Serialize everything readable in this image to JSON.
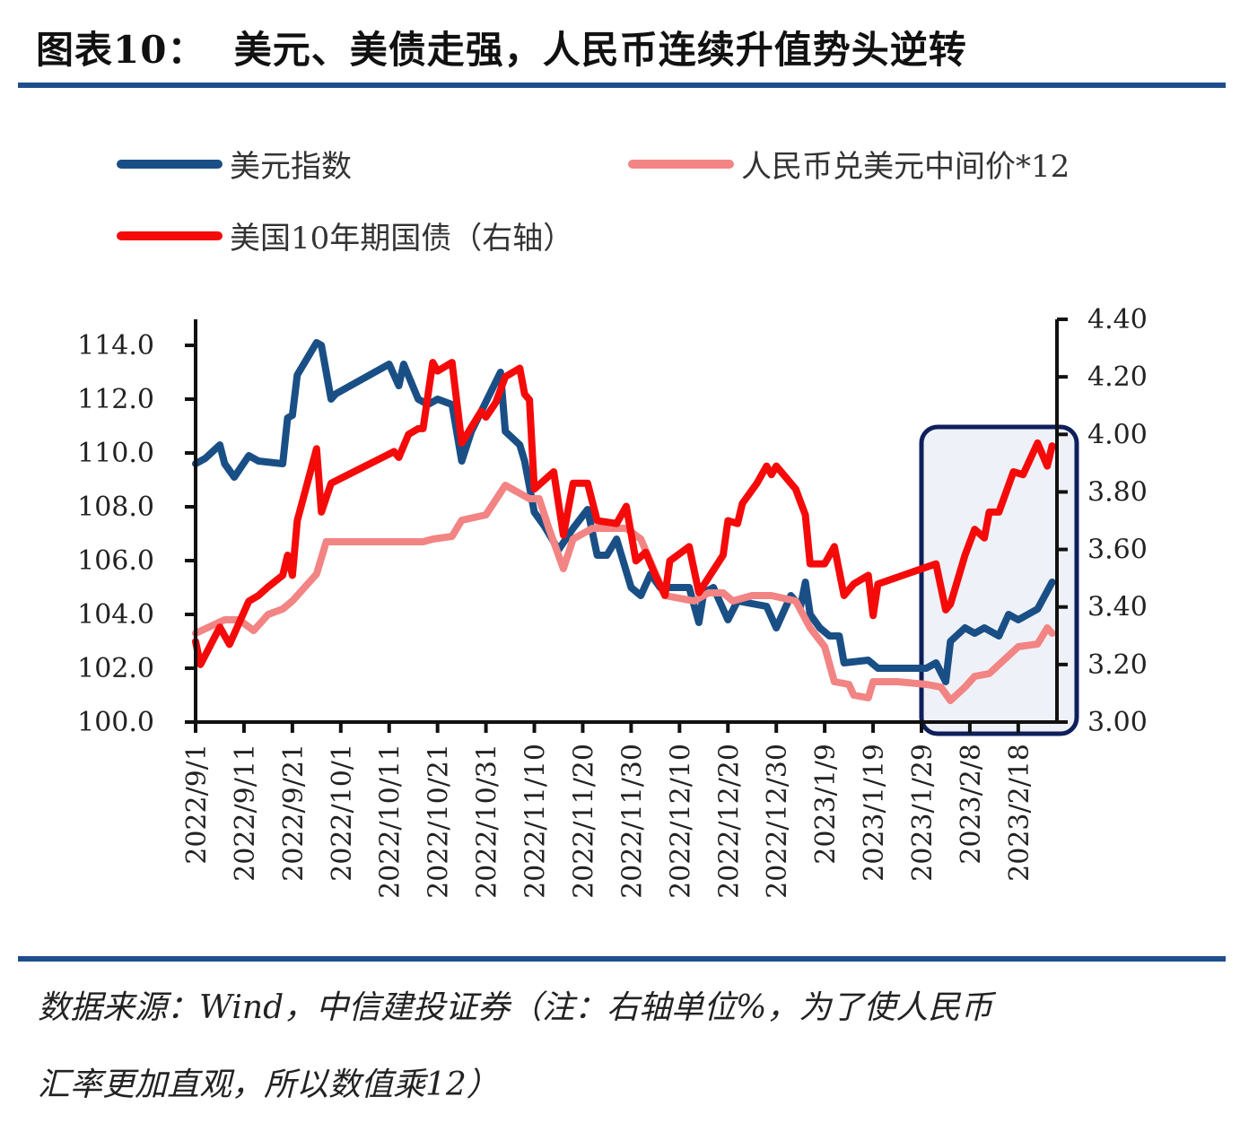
{
  "title": "图表10：  美元、美债走强，人民币连续升值势头逆转",
  "source_lines": [
    "数据来源：Wind，中信建投证券（注：右轴单位%，为了使人民币",
    "汇率更加直观，所以数值乘12）"
  ],
  "colors": {
    "accent_rule": "#1f4e8c",
    "highlight_border": "#0f1f5c",
    "highlight_fill": "#eef1f7"
  },
  "chart_data": {
    "type": "line",
    "title": "",
    "legend_position": "top",
    "grid": false,
    "xlim": [
      "2022/9/1",
      "2023/2/26"
    ],
    "x_ticks": [
      "2022/9/1",
      "2022/9/11",
      "2022/9/21",
      "2022/10/1",
      "2022/10/11",
      "2022/10/21",
      "2022/10/31",
      "2022/11/10",
      "2022/11/20",
      "2022/11/30",
      "2022/12/10",
      "2022/12/20",
      "2022/12/30",
      "2023/1/9",
      "2023/1/19",
      "2023/1/29",
      "2023/2/8",
      "2023/2/18"
    ],
    "y_left": {
      "lim": [
        100,
        115
      ],
      "ticks": [
        "100.0",
        "102.0",
        "104.0",
        "106.0",
        "108.0",
        "110.0",
        "112.0",
        "114.0"
      ]
    },
    "y_right": {
      "lim": [
        3.0,
        4.4
      ],
      "ticks": [
        "3.00",
        "3.20",
        "3.40",
        "3.60",
        "3.80",
        "4.00",
        "4.20",
        "4.40"
      ]
    },
    "highlight": {
      "from": "2023/1/29",
      "to": "2023/2/26"
    },
    "series": [
      {
        "name": "美元指数",
        "axis": "left",
        "color": "#1a4f86",
        "points": [
          [
            "2022/9/1",
            109.6
          ],
          [
            "2022/9/3",
            109.8
          ],
          [
            "2022/9/6",
            110.3
          ],
          [
            "2022/9/7",
            109.6
          ],
          [
            "2022/9/9",
            109.1
          ],
          [
            "2022/9/12",
            109.9
          ],
          [
            "2022/9/14",
            109.7
          ],
          [
            "2022/9/19",
            109.6
          ],
          [
            "2022/9/20",
            111.3
          ],
          [
            "2022/9/21",
            111.4
          ],
          [
            "2022/9/22",
            112.9
          ],
          [
            "2022/9/26",
            114.1
          ],
          [
            "2022/9/27",
            114.0
          ],
          [
            "2022/9/29",
            112.0
          ],
          [
            "2022/9/30",
            112.2
          ],
          [
            "2022/10/11",
            113.3
          ],
          [
            "2022/10/13",
            112.5
          ],
          [
            "2022/10/14",
            113.3
          ],
          [
            "2022/10/17",
            112.0
          ],
          [
            "2022/10/19",
            111.8
          ],
          [
            "2022/10/21",
            112.0
          ],
          [
            "2022/10/24",
            111.8
          ],
          [
            "2022/10/26",
            109.7
          ],
          [
            "2022/10/28",
            110.8
          ],
          [
            "2022/11/3",
            113.0
          ],
          [
            "2022/11/4",
            110.8
          ],
          [
            "2022/11/7",
            110.3
          ],
          [
            "2022/11/8",
            109.7
          ],
          [
            "2022/11/10",
            107.8
          ],
          [
            "2022/11/12",
            107.3
          ],
          [
            "2022/11/15",
            106.4
          ],
          [
            "2022/11/18",
            107.2
          ],
          [
            "2022/11/21",
            107.9
          ],
          [
            "2022/11/23",
            106.2
          ],
          [
            "2022/11/25",
            106.2
          ],
          [
            "2022/11/27",
            106.8
          ],
          [
            "2022/11/30",
            105.0
          ],
          [
            "2022/12/2",
            104.7
          ],
          [
            "2022/12/4",
            105.5
          ],
          [
            "2022/12/6",
            105.0
          ],
          [
            "2022/12/10",
            105.0
          ],
          [
            "2022/12/12",
            105.0
          ],
          [
            "2022/12/14",
            103.7
          ],
          [
            "2022/12/15",
            104.8
          ],
          [
            "2022/12/17",
            105.0
          ],
          [
            "2022/12/20",
            103.8
          ],
          [
            "2022/12/22",
            104.5
          ],
          [
            "2022/12/28",
            104.3
          ],
          [
            "2022/12/30",
            103.5
          ],
          [
            "2023/1/2",
            104.7
          ],
          [
            "2023/1/4",
            104.3
          ],
          [
            "2023/1/5",
            105.2
          ],
          [
            "2023/1/6",
            104.0
          ],
          [
            "2023/1/8",
            103.5
          ],
          [
            "2023/1/10",
            103.2
          ],
          [
            "2023/1/12",
            103.2
          ],
          [
            "2023/1/13",
            102.2
          ],
          [
            "2023/1/18",
            102.3
          ],
          [
            "2023/1/20",
            102.0
          ],
          [
            "2023/1/30",
            102.0
          ],
          [
            "2023/2/1",
            102.2
          ],
          [
            "2023/2/3",
            101.5
          ],
          [
            "2023/2/4",
            103.0
          ],
          [
            "2023/2/7",
            103.5
          ],
          [
            "2023/2/9",
            103.3
          ],
          [
            "2023/2/11",
            103.5
          ],
          [
            "2023/2/14",
            103.2
          ],
          [
            "2023/2/16",
            104.0
          ],
          [
            "2023/2/18",
            103.8
          ],
          [
            "2023/2/22",
            104.2
          ],
          [
            "2023/2/25",
            105.2
          ]
        ]
      },
      {
        "name": "人民币兑美元中间价*12",
        "axis": "left",
        "color": "#f28484",
        "points": [
          [
            "2022/9/1",
            103.3
          ],
          [
            "2022/9/7",
            103.8
          ],
          [
            "2022/9/10",
            103.8
          ],
          [
            "2022/9/13",
            103.4
          ],
          [
            "2022/9/16",
            104.0
          ],
          [
            "2022/9/19",
            104.2
          ],
          [
            "2022/9/21",
            104.5
          ],
          [
            "2022/9/26",
            105.5
          ],
          [
            "2022/9/28",
            106.7
          ],
          [
            "2022/10/8",
            106.7
          ],
          [
            "2022/10/18",
            106.7
          ],
          [
            "2022/10/20",
            106.8
          ],
          [
            "2022/10/24",
            106.9
          ],
          [
            "2022/10/26",
            107.5
          ],
          [
            "2022/10/31",
            107.7
          ],
          [
            "2022/11/4",
            108.8
          ],
          [
            "2022/11/9",
            108.3
          ],
          [
            "2022/11/11",
            108.3
          ],
          [
            "2022/11/13",
            107.2
          ],
          [
            "2022/11/16",
            105.7
          ],
          [
            "2022/11/18",
            106.8
          ],
          [
            "2022/11/22",
            107.2
          ],
          [
            "2022/11/26",
            107.2
          ],
          [
            "2022/11/29",
            107.2
          ],
          [
            "2022/12/2",
            106.8
          ],
          [
            "2022/12/7",
            104.7
          ],
          [
            "2022/12/13",
            104.5
          ],
          [
            "2022/12/16",
            104.8
          ],
          [
            "2022/12/19",
            104.8
          ],
          [
            "2022/12/21",
            104.5
          ],
          [
            "2022/12/25",
            104.7
          ],
          [
            "2022/12/29",
            104.7
          ],
          [
            "2023/1/3",
            104.5
          ],
          [
            "2023/1/6",
            103.5
          ],
          [
            "2023/1/9",
            102.8
          ],
          [
            "2023/1/11",
            101.5
          ],
          [
            "2023/1/14",
            101.4
          ],
          [
            "2023/1/15",
            101.0
          ],
          [
            "2023/1/18",
            100.9
          ],
          [
            "2023/1/19",
            101.5
          ],
          [
            "2023/1/24",
            101.5
          ],
          [
            "2023/1/30",
            101.4
          ],
          [
            "2023/2/2",
            101.3
          ],
          [
            "2023/2/4",
            100.8
          ],
          [
            "2023/2/7",
            101.3
          ],
          [
            "2023/2/9",
            101.7
          ],
          [
            "2023/2/12",
            101.8
          ],
          [
            "2023/2/15",
            102.3
          ],
          [
            "2023/2/18",
            102.8
          ],
          [
            "2023/2/22",
            102.9
          ],
          [
            "2023/2/24",
            103.5
          ],
          [
            "2023/2/25",
            103.3
          ]
        ]
      },
      {
        "name": "美国10年期国债（右轴）",
        "axis": "right",
        "color": "#f50a0a",
        "points": [
          [
            "2022/9/1",
            3.28
          ],
          [
            "2022/9/2",
            3.2
          ],
          [
            "2022/9/6",
            3.33
          ],
          [
            "2022/9/8",
            3.27
          ],
          [
            "2022/9/12",
            3.42
          ],
          [
            "2022/9/14",
            3.44
          ],
          [
            "2022/9/16",
            3.47
          ],
          [
            "2022/9/19",
            3.51
          ],
          [
            "2022/9/20",
            3.58
          ],
          [
            "2022/9/21",
            3.51
          ],
          [
            "2022/9/22",
            3.7
          ],
          [
            "2022/9/26",
            3.95
          ],
          [
            "2022/9/27",
            3.73
          ],
          [
            "2022/9/29",
            3.83
          ],
          [
            "2022/10/12",
            3.94
          ],
          [
            "2022/10/13",
            3.92
          ],
          [
            "2022/10/15",
            4.0
          ],
          [
            "2022/10/17",
            4.02
          ],
          [
            "2022/10/18",
            4.02
          ],
          [
            "2022/10/20",
            4.25
          ],
          [
            "2022/10/21",
            4.22
          ],
          [
            "2022/10/24",
            4.25
          ],
          [
            "2022/10/26",
            3.97
          ],
          [
            "2022/10/30",
            4.08
          ],
          [
            "2022/10/31",
            4.06
          ],
          [
            "2022/11/2",
            4.11
          ],
          [
            "2022/11/4",
            4.2
          ],
          [
            "2022/11/7",
            4.23
          ],
          [
            "2022/11/8",
            4.14
          ],
          [
            "2022/11/9",
            4.12
          ],
          [
            "2022/11/10",
            3.81
          ],
          [
            "2022/11/14",
            3.87
          ],
          [
            "2022/11/16",
            3.65
          ],
          [
            "2022/11/18",
            3.83
          ],
          [
            "2022/11/21",
            3.83
          ],
          [
            "2022/11/23",
            3.7
          ],
          [
            "2022/11/27",
            3.69
          ],
          [
            "2022/11/29",
            3.75
          ],
          [
            "2022/12/1",
            3.56
          ],
          [
            "2022/12/3",
            3.59
          ],
          [
            "2022/12/5",
            3.51
          ],
          [
            "2022/12/7",
            3.44
          ],
          [
            "2022/12/8",
            3.56
          ],
          [
            "2022/12/12",
            3.61
          ],
          [
            "2022/12/14",
            3.45
          ],
          [
            "2022/12/19",
            3.58
          ],
          [
            "2022/12/20",
            3.7
          ],
          [
            "2022/12/22",
            3.69
          ],
          [
            "2022/12/23",
            3.76
          ],
          [
            "2022/12/26",
            3.83
          ],
          [
            "2022/12/28",
            3.89
          ],
          [
            "2022/12/29",
            3.86
          ],
          [
            "2022/12/30",
            3.89
          ],
          [
            "2023/1/3",
            3.81
          ],
          [
            "2023/1/5",
            3.72
          ],
          [
            "2023/1/6",
            3.55
          ],
          [
            "2023/1/9",
            3.55
          ],
          [
            "2023/1/11",
            3.61
          ],
          [
            "2023/1/13",
            3.44
          ],
          [
            "2023/1/15",
            3.48
          ],
          [
            "2023/1/18",
            3.51
          ],
          [
            "2023/1/19",
            3.37
          ],
          [
            "2023/1/20",
            3.48
          ],
          [
            "2023/2/1",
            3.55
          ],
          [
            "2023/2/3",
            3.39
          ],
          [
            "2023/2/4",
            3.41
          ],
          [
            "2023/2/7",
            3.58
          ],
          [
            "2023/2/9",
            3.67
          ],
          [
            "2023/2/11",
            3.64
          ],
          [
            "2023/2/12",
            3.73
          ],
          [
            "2023/2/14",
            3.73
          ],
          [
            "2023/2/17",
            3.87
          ],
          [
            "2023/2/19",
            3.86
          ],
          [
            "2023/2/22",
            3.97
          ],
          [
            "2023/2/24",
            3.89
          ],
          [
            "2023/2/25",
            3.96
          ]
        ]
      }
    ]
  }
}
